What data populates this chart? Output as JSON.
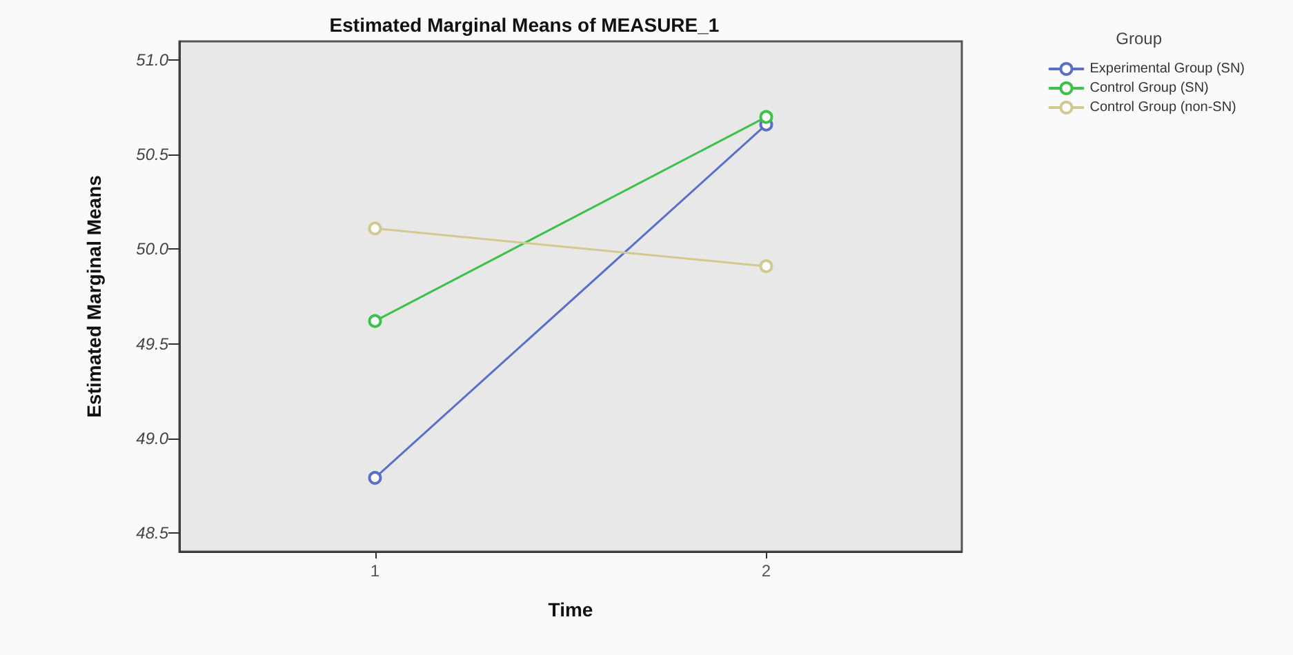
{
  "chart_data": {
    "type": "line",
    "title": "Estimated Marginal Means of MEASURE_1",
    "xlabel": "Time",
    "ylabel": "Estimated Marginal Means",
    "legend_title": "Group",
    "categories": [
      "1",
      "2"
    ],
    "series": [
      {
        "name": "Experimental Group (SN)",
        "color": "#5b6fc8",
        "values": [
          48.79,
          50.66
        ]
      },
      {
        "name": "Control Group (SN)",
        "color": "#3cc24a",
        "values": [
          49.62,
          50.7
        ]
      },
      {
        "name": "Control Group (non-SN)",
        "color": "#d2c98e",
        "values": [
          50.11,
          49.91
        ]
      }
    ],
    "ylim": [
      48.4,
      51.1
    ],
    "yticks": [
      48.5,
      {
        "value": 49,
        "label": "49.0"
      },
      49.5,
      {
        "value": 50,
        "label": "50.0"
      },
      50.5,
      {
        "value": 51,
        "label": "51.0"
      }
    ],
    "grid": false,
    "legend": "top right",
    "marker": "circle",
    "line_style": "solid"
  }
}
